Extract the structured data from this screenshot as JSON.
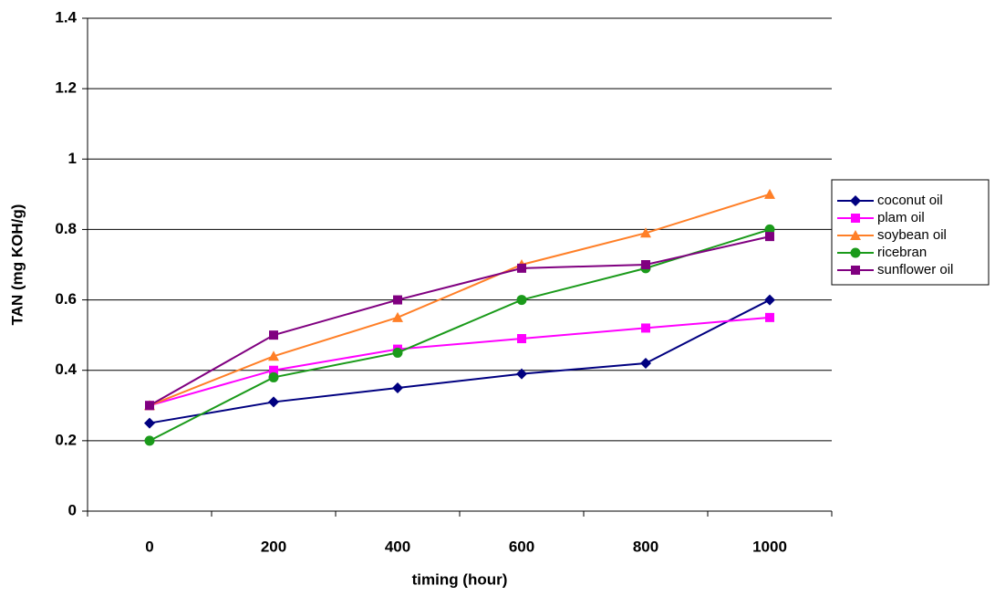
{
  "chart_data": {
    "type": "line",
    "x_label": "timing (hour)",
    "y_label": "TAN (mg KOH/g)",
    "categories": [
      "0",
      "200",
      "400",
      "600",
      "800",
      "1000"
    ],
    "ylim": [
      0,
      1.4
    ],
    "yticks": [
      0,
      0.2,
      0.4,
      0.6,
      0.8,
      1,
      1.2,
      1.4
    ],
    "grid": true,
    "legend": "right",
    "series": [
      {
        "name": "coconut oil",
        "color": "#000080",
        "marker": "diamond",
        "values": [
          0.25,
          0.31,
          0.35,
          0.39,
          0.42,
          0.6
        ]
      },
      {
        "name": "plam oil",
        "color": "#ff00ff",
        "marker": "square",
        "values": [
          0.3,
          0.4,
          0.46,
          0.49,
          0.52,
          0.55
        ]
      },
      {
        "name": "soybean oil",
        "color": "#ff7f27",
        "marker": "triangle",
        "values": [
          0.3,
          0.44,
          0.55,
          0.7,
          0.79,
          0.9
        ]
      },
      {
        "name": "ricebran",
        "color": "#1a9a1a",
        "marker": "circle",
        "values": [
          0.2,
          0.38,
          0.45,
          0.6,
          0.69,
          0.8
        ]
      },
      {
        "name": "sunflower oil",
        "color": "#800080",
        "marker": "square",
        "values": [
          0.3,
          0.5,
          0.6,
          0.69,
          0.7,
          0.78
        ]
      }
    ]
  }
}
